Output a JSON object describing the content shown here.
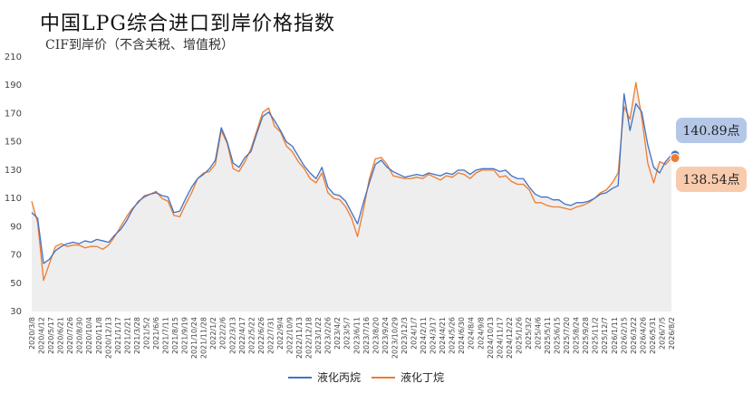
{
  "header": {
    "title": "中国LPG综合进口到岸价格指数",
    "subtitle": "CIF到岸价（不含关税、增值税）"
  },
  "colors": {
    "propane": "#4472C4",
    "butane": "#ED7D31",
    "callout_propane_bg": "#B4C7E7",
    "callout_butane_bg": "#F8CBAD",
    "area_fill": "#EEEEEE"
  },
  "legend": {
    "placement": "bottom-center",
    "propane_label": "液化丙烷",
    "butane_label": "液化丁烷"
  },
  "callouts": {
    "propane_value": "140.89点",
    "butane_value": "138.54点"
  },
  "chart_data": {
    "type": "line",
    "ylim": [
      30,
      210
    ],
    "y_ticks": [
      30,
      50,
      70,
      90,
      110,
      130,
      150,
      170,
      190,
      210
    ],
    "grid": false,
    "x_tick_labels": [
      "2020/3/8",
      "2020/4/12",
      "2020/5/17",
      "2020/6/21",
      "2020/7/26",
      "2020/8/30",
      "2020/10/4",
      "2020/11/8",
      "2020/12/13",
      "2021/1/17",
      "2021/2/21",
      "2021/3/28",
      "2021/5/2",
      "2021/6/6",
      "2021/7/11",
      "2021/8/15",
      "2021/9/19",
      "2021/10/24",
      "2021/11/28",
      "2022/1/2",
      "2022/2/6",
      "2022/3/13",
      "2022/4/17",
      "2022/5/22",
      "2022/6/26",
      "2022/7/31",
      "2022/9/4",
      "2022/10/9",
      "2022/11/13",
      "2022/12/18",
      "2023/1/22",
      "2023/2/26",
      "2023/4/2",
      "2023/5/7",
      "2023/6/11",
      "2023/7/16",
      "2023/8/20",
      "2023/9/24",
      "2023/10/29",
      "2023/12/3",
      "2024/1/7",
      "2024/2/11",
      "2024/3/17",
      "2024/4/21",
      "2024/5/26",
      "2024/6/30",
      "2024/8/4",
      "2024/9/8",
      "2024/10/13",
      "2024/11/17",
      "2024/12/22",
      "2025/1/26",
      "2025/3/2",
      "2025/4/6",
      "2025/5/11",
      "2025/6/15",
      "2025/7/20",
      "2025/8/24",
      "2025/9/28",
      "2025/11/2",
      "2025/12/7",
      "2026/1/11",
      "2026/2/15",
      "2026/3/22",
      "2026/4/26",
      "2026/5/31",
      "2026/7/5",
      "2026/8/2"
    ],
    "series": [
      {
        "name": "液化丙烷",
        "values": [
          100,
          96,
          64,
          67,
          73,
          76,
          78,
          79,
          78,
          80,
          79,
          81,
          80,
          79,
          84,
          88,
          94,
          102,
          108,
          111,
          113,
          114,
          112,
          111,
          100,
          101,
          110,
          118,
          124,
          127,
          131,
          137,
          160,
          150,
          135,
          132,
          139,
          143,
          156,
          168,
          171,
          165,
          158,
          150,
          147,
          140,
          133,
          128,
          124,
          132,
          118,
          113,
          112,
          108,
          100,
          92,
          107,
          121,
          134,
          137,
          132,
          129,
          127,
          125,
          126,
          127,
          126,
          128,
          127,
          126,
          128,
          127,
          130,
          130,
          127,
          130,
          131,
          131,
          131,
          129,
          130,
          126,
          124,
          124,
          118,
          113,
          111,
          111,
          109,
          109,
          106,
          105,
          107,
          107,
          108,
          110,
          113,
          114,
          117,
          119,
          184,
          158,
          177,
          171,
          148,
          132,
          128,
          136,
          140.89
        ]
      },
      {
        "name": "液化丁烷",
        "values": [
          108,
          93,
          52,
          64,
          76,
          78,
          76,
          77,
          77,
          75,
          76,
          76,
          74,
          77,
          83,
          90,
          97,
          103,
          107,
          112,
          113,
          115,
          110,
          108,
          98,
          97,
          106,
          114,
          124,
          128,
          129,
          134,
          158,
          149,
          131,
          129,
          136,
          145,
          158,
          171,
          174,
          161,
          157,
          147,
          143,
          136,
          131,
          124,
          121,
          128,
          114,
          110,
          109,
          104,
          96,
          83,
          102,
          124,
          138,
          139,
          134,
          126,
          125,
          124,
          124,
          125,
          124,
          127,
          125,
          123,
          126,
          125,
          128,
          127,
          124,
          128,
          130,
          130,
          130,
          125,
          126,
          122,
          120,
          120,
          116,
          107,
          107,
          105,
          104,
          104,
          103,
          102,
          104,
          105,
          107,
          110,
          114,
          116,
          121,
          128,
          175,
          166,
          192,
          167,
          135,
          121,
          136,
          134,
          138.54
        ]
      }
    ]
  }
}
